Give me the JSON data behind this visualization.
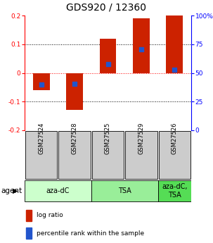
{
  "title": "GDS920 / 12360",
  "categories": [
    "GSM27524",
    "GSM27528",
    "GSM27525",
    "GSM27529",
    "GSM27526"
  ],
  "bar_values": [
    -0.06,
    -0.13,
    0.12,
    0.19,
    0.2
  ],
  "blue_values": [
    -0.04,
    -0.038,
    0.03,
    0.082,
    0.01
  ],
  "ylim": [
    -0.2,
    0.2
  ],
  "right_ylim": [
    0,
    100
  ],
  "bar_color": "#cc2200",
  "blue_color": "#2255cc",
  "groups": [
    {
      "label": "aza-dC",
      "start": 0,
      "end": 2,
      "color": "#ccffcc"
    },
    {
      "label": "TSA",
      "start": 2,
      "end": 4,
      "color": "#99ee99"
    },
    {
      "label": "aza-dC,\nTSA",
      "start": 4,
      "end": 5,
      "color": "#55dd55"
    }
  ],
  "agent_label": "agent",
  "legend_log_ratio": "log ratio",
  "legend_percentile": "percentile rank within the sample",
  "title_fontsize": 10,
  "tick_fontsize": 6.5,
  "label_fontsize": 6,
  "group_fontsize": 7,
  "bar_width": 0.5
}
